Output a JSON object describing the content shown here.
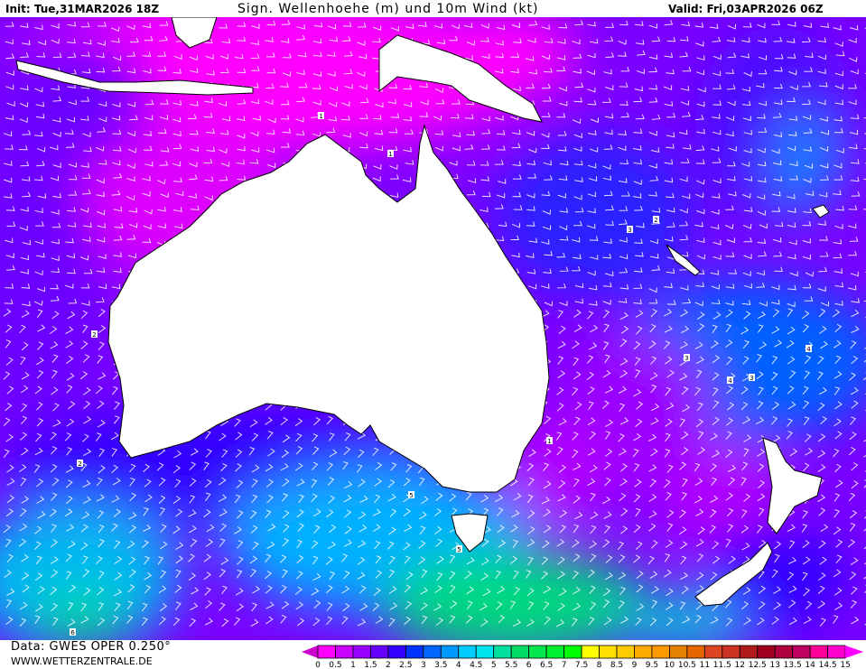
{
  "header": {
    "init": "Init: Tue,31MAR2026 18Z",
    "title": "Sign. Wellenhoehe (m) und 10m Wind (kt)",
    "valid": "Valid: Fri,03APR2026 06Z"
  },
  "footer": {
    "data_source": "Data: GWES OPER 0.250°",
    "website": "WWW.WETTERZENTRALE.DE"
  },
  "map": {
    "field": "significant wave height",
    "overlay": "wind barbs",
    "land_color": "#ffffff",
    "contour_labels": [
      "1",
      "1",
      "1",
      "2",
      "2",
      "2",
      "3",
      "3",
      "3",
      "4",
      "4",
      "5",
      "5",
      "6"
    ]
  },
  "legend": {
    "labels": [
      "0",
      "0.5",
      "1",
      "1.5",
      "2",
      "2.5",
      "3",
      "3.5",
      "4",
      "4.5",
      "5",
      "5.5",
      "6",
      "6.5",
      "7",
      "7.5",
      "8",
      "8.5",
      "9",
      "9.5",
      "10",
      "10.5",
      "11",
      "11.5",
      "12",
      "12.5",
      "13",
      "13.5",
      "14",
      "14.5",
      "15"
    ],
    "colors": [
      "#ff00ff",
      "#cc00ff",
      "#9900ff",
      "#6600ff",
      "#3300ff",
      "#0033ff",
      "#0066ff",
      "#0099ff",
      "#00ccff",
      "#00e5ee",
      "#00e0a0",
      "#00dd66",
      "#00e64d",
      "#00f030",
      "#00ff00",
      "#ffff00",
      "#ffe000",
      "#ffcc00",
      "#ffaa00",
      "#ff9900",
      "#e68000",
      "#e66600",
      "#dd4422",
      "#cc3322",
      "#b01a1a",
      "#a00020",
      "#b00040",
      "#c00060",
      "#ff0099",
      "#ff00cc"
    ],
    "under_color": "#cc00cc",
    "over_color": "#ff00ff"
  }
}
